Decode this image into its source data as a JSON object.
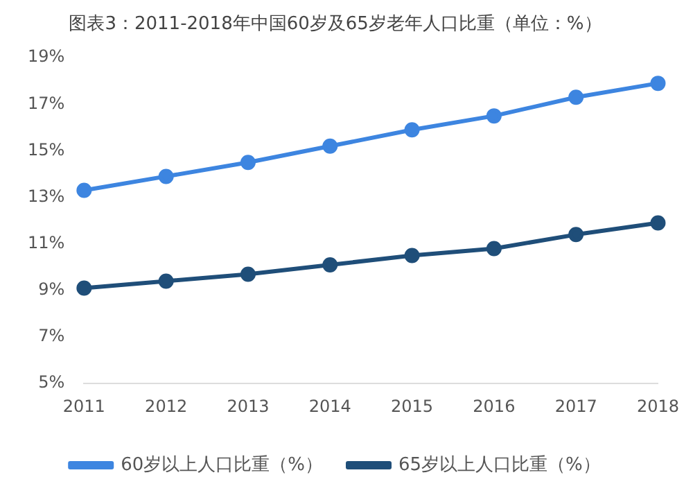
{
  "chart_data": {
    "type": "line",
    "title": "图表3：2011-2018年中国60岁及65岁老年人口比重（单位：%）",
    "categories": [
      "2011",
      "2012",
      "2013",
      "2014",
      "2015",
      "2016",
      "2017",
      "2018"
    ],
    "series": [
      {
        "name": "60岁以上人口比重（%）",
        "color": "#3d85e0",
        "values": [
          13.3,
          13.9,
          14.5,
          15.2,
          15.9,
          16.5,
          17.3,
          17.9
        ]
      },
      {
        "name": "65岁以上人口比重（%）",
        "color": "#1f4e79",
        "values": [
          9.1,
          9.4,
          9.7,
          10.1,
          10.5,
          10.8,
          11.4,
          11.9
        ]
      }
    ],
    "ylim": [
      5,
      19
    ],
    "yticks": [
      {
        "value": 5,
        "label": "5%"
      },
      {
        "value": 7,
        "label": "7%"
      },
      {
        "value": 9,
        "label": "9%"
      },
      {
        "value": 11,
        "label": "11%"
      },
      {
        "value": 13,
        "label": "13%"
      },
      {
        "value": 15,
        "label": "15%"
      },
      {
        "value": 17,
        "label": "17%"
      },
      {
        "value": 19,
        "label": "19%"
      }
    ],
    "grid": false,
    "legend": "bottom",
    "marker": "circle",
    "line_style": "solid"
  }
}
